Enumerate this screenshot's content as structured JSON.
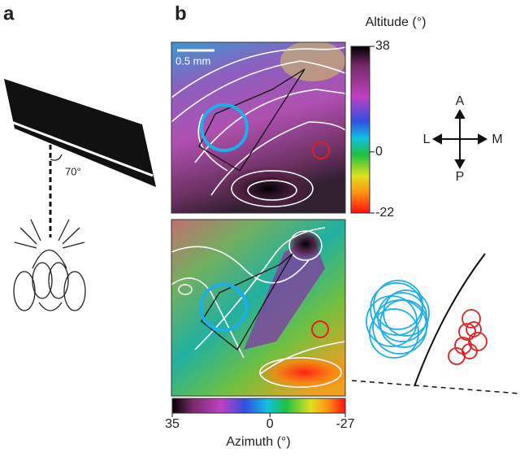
{
  "panel_a": {
    "label": "a",
    "angle_label": "70°"
  },
  "panel_b": {
    "label": "b",
    "scale_bar": "0.5 mm",
    "altitude_colorbar": {
      "title": "Altitude (°)",
      "ticks": [
        38,
        0,
        -22
      ]
    },
    "azimuth_colorbar": {
      "title": "Azimuth (°)",
      "ticks": [
        35,
        0,
        -27
      ]
    },
    "compass": {
      "anterior": "A",
      "posterior": "P",
      "lateral": "L",
      "medial": "M"
    }
  }
}
